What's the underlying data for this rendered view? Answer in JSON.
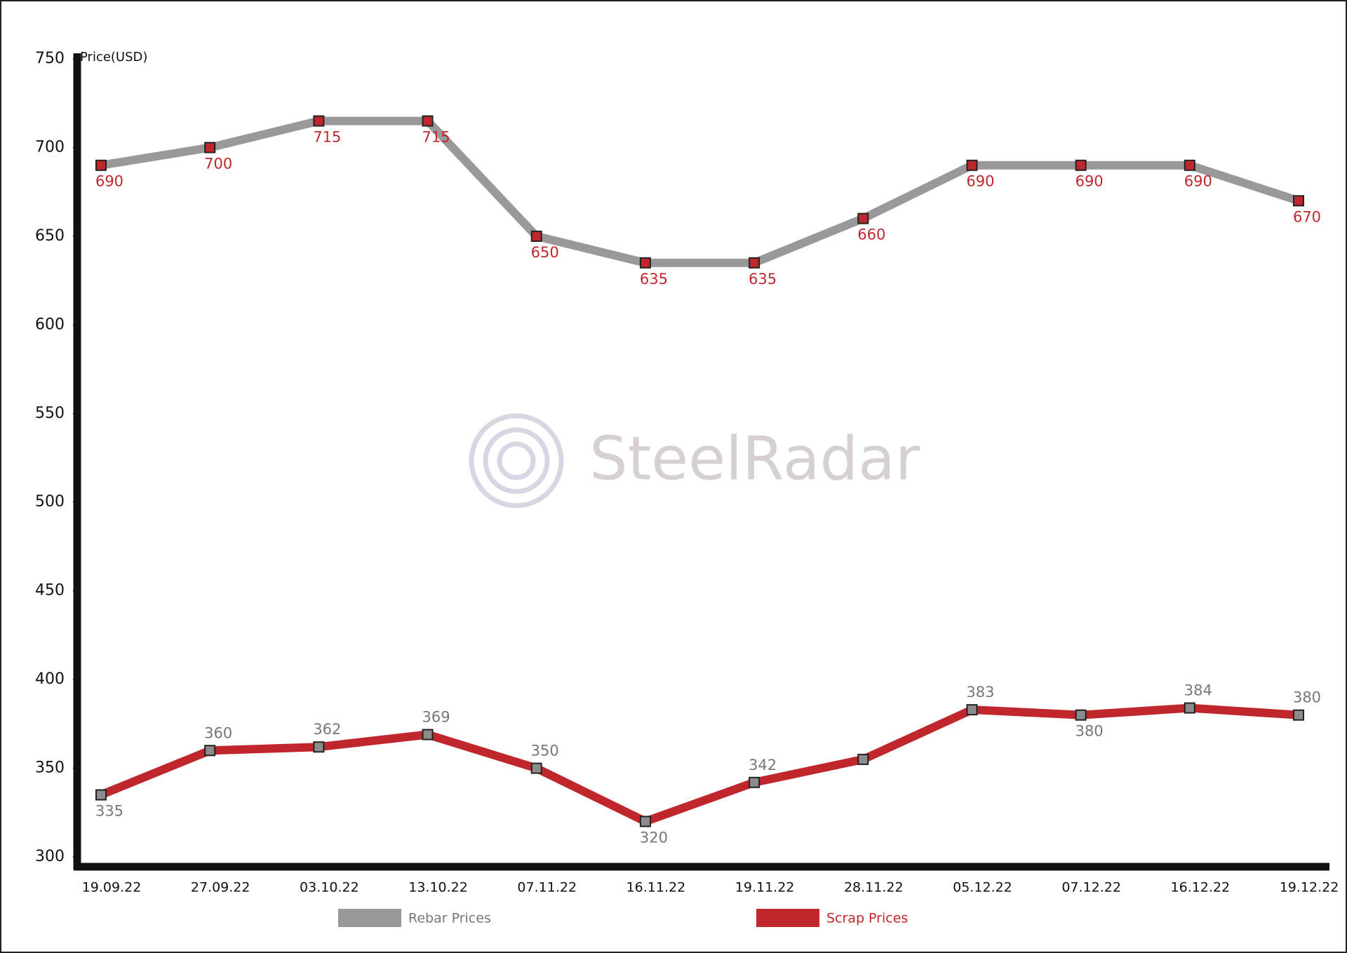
{
  "chart_data": {
    "type": "line",
    "y_label": "Price(USD)",
    "watermark": "SteelRadar",
    "categories": [
      "19.09.22",
      "27.09.22",
      "03.10.22",
      "13.10.22",
      "07.11.22",
      "16.11.22",
      "19.11.22",
      "28.11.22",
      "05.12.22",
      "07.12.22",
      "16.12.22",
      "19.12.22"
    ],
    "series": [
      {
        "name": "Rebar Prices",
        "color": "#999999",
        "marker_color": "#c0272d",
        "label_color": "#c0272d",
        "values": [
          690,
          700,
          715,
          715,
          650,
          635,
          635,
          660,
          690,
          690,
          690,
          670
        ]
      },
      {
        "name": "Scrap Prices",
        "color": "#c0272d",
        "marker_color": "#8c8c8c",
        "label_color": "#777777",
        "values": [
          335,
          360,
          362,
          369,
          350,
          320,
          342,
          355,
          383,
          380,
          384,
          380
        ],
        "value_labels": [
          "335",
          "360",
          "362",
          "369",
          "350",
          "320",
          "342",
          null,
          "383",
          "380",
          "384",
          "380"
        ]
      }
    ],
    "ylim": [
      300,
      750
    ],
    "yticks": [
      300,
      350,
      400,
      450,
      500,
      550,
      600,
      650,
      700,
      750
    ],
    "grid": false
  }
}
